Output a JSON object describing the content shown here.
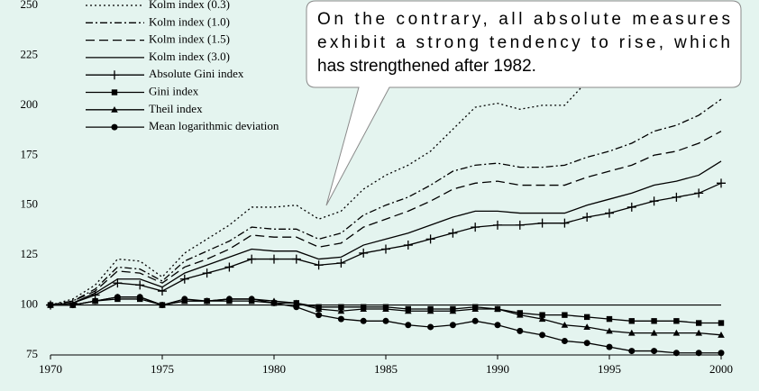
{
  "chart_data": {
    "type": "line",
    "annotation": [
      "On the contrary, all absolute measures",
      "exhibit a strong tendency to rise, which",
      "has strengthened after 1982."
    ],
    "x": [
      1970,
      1971,
      1972,
      1973,
      1974,
      1975,
      1976,
      1977,
      1978,
      1979,
      1980,
      1981,
      1982,
      1983,
      1984,
      1985,
      1986,
      1987,
      1988,
      1989,
      1990,
      1991,
      1992,
      1993,
      1994,
      1995,
      1996,
      1997,
      1998,
      1999,
      2000
    ],
    "xlim": [
      1970,
      2000
    ],
    "xticks": [
      1970,
      1975,
      1980,
      1985,
      1990,
      1995,
      2000
    ],
    "ylim": [
      75,
      250
    ],
    "yticks": [
      75,
      100,
      125,
      150,
      175,
      200,
      225,
      250
    ],
    "reference_line": 100,
    "series": [
      {
        "name": "Kolm index (0.3)",
        "color": "#000000",
        "dash": "2,3",
        "marker": "none",
        "values": [
          100,
          103,
          110,
          123,
          122,
          114,
          126,
          133,
          140,
          149,
          149,
          150,
          143,
          147,
          158,
          165,
          170,
          177,
          188,
          199,
          201,
          198,
          200,
          200,
          212,
          218,
          222,
          230,
          234,
          240,
          248
        ]
      },
      {
        "name": "Kolm index (1.0)",
        "color": "#000000",
        "dash": "8,3,2,3",
        "marker": "none",
        "values": [
          100,
          102,
          108,
          119,
          118,
          112,
          122,
          127,
          132,
          139,
          138,
          138,
          133,
          136,
          145,
          150,
          154,
          160,
          167,
          170,
          171,
          169,
          169,
          170,
          174,
          177,
          181,
          187,
          190,
          195,
          203
        ]
      },
      {
        "name": "Kolm index (1.5)",
        "color": "#000000",
        "dash": "10,5",
        "marker": "none",
        "values": [
          100,
          102,
          107,
          117,
          116,
          111,
          119,
          123,
          128,
          135,
          134,
          134,
          129,
          131,
          139,
          143,
          147,
          152,
          158,
          161,
          162,
          160,
          160,
          160,
          164,
          167,
          170,
          175,
          177,
          181,
          187
        ]
      },
      {
        "name": "Kolm index (3.0)",
        "color": "#000000",
        "dash": "none",
        "marker": "none",
        "values": [
          100,
          101,
          106,
          113,
          113,
          109,
          116,
          120,
          124,
          128,
          127,
          127,
          123,
          124,
          130,
          133,
          136,
          140,
          144,
          147,
          147,
          146,
          146,
          146,
          150,
          153,
          156,
          160,
          162,
          165,
          172
        ]
      },
      {
        "name": "Absolute Gini index",
        "color": "#000000",
        "dash": "none",
        "marker": "plus",
        "values": [
          100,
          101,
          105,
          111,
          110,
          107,
          113,
          116,
          119,
          123,
          123,
          123,
          120,
          121,
          126,
          128,
          130,
          133,
          136,
          139,
          140,
          140,
          141,
          141,
          144,
          146,
          149,
          152,
          154,
          156,
          161
        ]
      },
      {
        "name": "Gini index",
        "color": "#000000",
        "dash": "none",
        "marker": "square",
        "values": [
          100,
          100,
          102,
          103,
          103,
          100,
          102,
          102,
          102,
          102,
          101,
          101,
          99,
          99,
          99,
          99,
          98,
          98,
          98,
          99,
          98,
          96,
          95,
          95,
          94,
          93,
          92,
          92,
          92,
          91,
          91
        ]
      },
      {
        "name": "Theil index",
        "color": "#000000",
        "dash": "none",
        "marker": "triangle",
        "values": [
          100,
          100,
          102,
          104,
          104,
          100,
          102,
          102,
          103,
          103,
          102,
          101,
          98,
          97,
          98,
          98,
          97,
          97,
          97,
          98,
          98,
          95,
          93,
          90,
          89,
          87,
          86,
          86,
          86,
          86,
          85
        ]
      },
      {
        "name": "Mean logarithmic deviation",
        "color": "#000000",
        "dash": "none",
        "marker": "circle",
        "values": [
          100,
          100,
          102,
          104,
          104,
          100,
          103,
          102,
          103,
          103,
          101,
          99,
          95,
          93,
          92,
          92,
          90,
          89,
          90,
          92,
          90,
          87,
          85,
          82,
          81,
          79,
          77,
          77,
          76,
          76,
          76
        ]
      }
    ]
  }
}
